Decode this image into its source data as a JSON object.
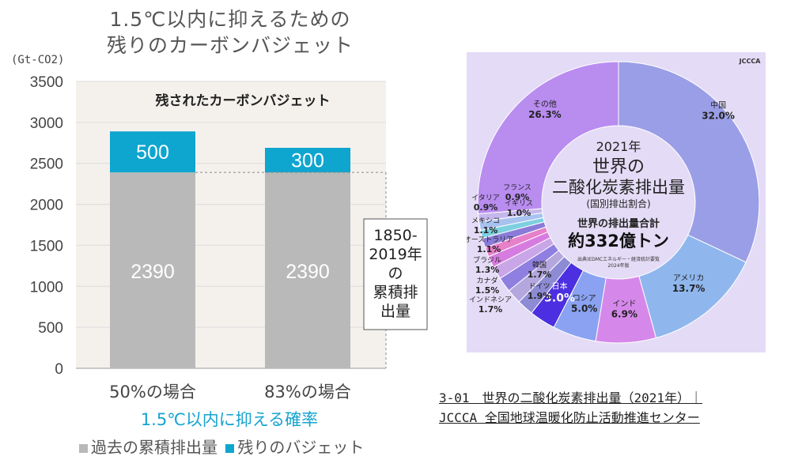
{
  "left": {
    "title_line1": "1.5℃以内に抑えるための",
    "title_line2": "残りのカーボンバジェット",
    "unit": "(Gt-CO2)",
    "inner_label": "残されたカーボンバジェット",
    "annotation": [
      "1850-",
      "2019年",
      "の",
      "累積排",
      "出量"
    ],
    "xaxis_title": "1.5℃以内に抑える確率",
    "legend": [
      {
        "label": "過去の累積排出量",
        "color": "#b9b9b9"
      },
      {
        "label": "残りのバジェット",
        "color": "#0ea5cf"
      }
    ]
  },
  "right": {
    "logo": "JCCCA",
    "center": {
      "year": "2021年",
      "title1": "世界の",
      "title2": "二酸化炭素排出量",
      "sub": "(国別排出割合)",
      "total_label": "世界の排出量合計",
      "total_value": "約332億トン",
      "source": "出典)EDMCエネルギー・経済統計要覧",
      "source2": "2024年版"
    },
    "caption_line1": "3-01　世界の二酸化炭素排出量（2021年）｜",
    "caption_line2": "JCCCA 全国地球温暖化防止活動推進センター"
  },
  "chart_data": [
    {
      "type": "bar",
      "stacked": true,
      "categories": [
        "50%の場合",
        "83%の場合"
      ],
      "series": [
        {
          "name": "過去の累積排出量",
          "values": [
            2390,
            2390
          ],
          "color": "#b9b9b9"
        },
        {
          "name": "残りのバジェット",
          "values": [
            500,
            300
          ],
          "color": "#0ea5cf"
        }
      ],
      "ylim": [
        0,
        3500
      ],
      "yticks": [
        0,
        500,
        1000,
        1500,
        2000,
        2500,
        3000,
        3500
      ],
      "ylabel": "(Gt-CO2)",
      "xlabel": "1.5℃以内に抑える確率",
      "grid": true,
      "title": "1.5℃以内に抑えるための残りのカーボンバジェット"
    },
    {
      "type": "pie",
      "donut": true,
      "title": "2021年 世界の二酸化炭素排出量 (国別排出割合)",
      "slices": [
        {
          "label": "中国",
          "value": 32.0,
          "display": "32.0%",
          "color": "#9a9ee6"
        },
        {
          "label": "アメリカ",
          "value": 13.7,
          "display": "13.7%",
          "color": "#8fb7ee"
        },
        {
          "label": "インド",
          "value": 6.9,
          "display": "6.9%",
          "color": "#d688ea"
        },
        {
          "label": "ロシア",
          "value": 5.0,
          "display": "5.0%",
          "color": "#8aa2f1"
        },
        {
          "label": "日本",
          "value": 3.0,
          "display": "3.0%",
          "color": "#4b2fe0"
        },
        {
          "label": "ドイツ",
          "value": 1.9,
          "display": "1.9%",
          "color": "#8d8bd4"
        },
        {
          "label": "韓国",
          "value": 1.7,
          "display": "1.7%",
          "color": "#b4a7de"
        },
        {
          "label": "インドネシア",
          "value": 1.7,
          "display": "1.7%",
          "color": "#8f7fe0"
        },
        {
          "label": "カナダ",
          "value": 1.5,
          "display": "1.5%",
          "color": "#c9a6e8"
        },
        {
          "label": "ブラジル",
          "value": 1.3,
          "display": "1.3%",
          "color": "#d67ce0"
        },
        {
          "label": "オーストラリア",
          "value": 1.1,
          "display": "1.1%",
          "color": "#e680c8"
        },
        {
          "label": "メキシコ",
          "value": 1.1,
          "display": "1.1%",
          "color": "#8b7bd8"
        },
        {
          "label": "イタリア",
          "value": 0.9,
          "display": "0.9%",
          "color": "#7dd0e0"
        },
        {
          "label": "イギリス",
          "value": 1.0,
          "display": "1.0%",
          "color": "#a8c2f0"
        },
        {
          "label": "フランス",
          "value": 0.9,
          "display": "0.9%",
          "color": "#c4b8ec"
        },
        {
          "label": "その他",
          "value": 26.3,
          "display": "26.3%",
          "color": "#b98cf0"
        }
      ]
    }
  ]
}
